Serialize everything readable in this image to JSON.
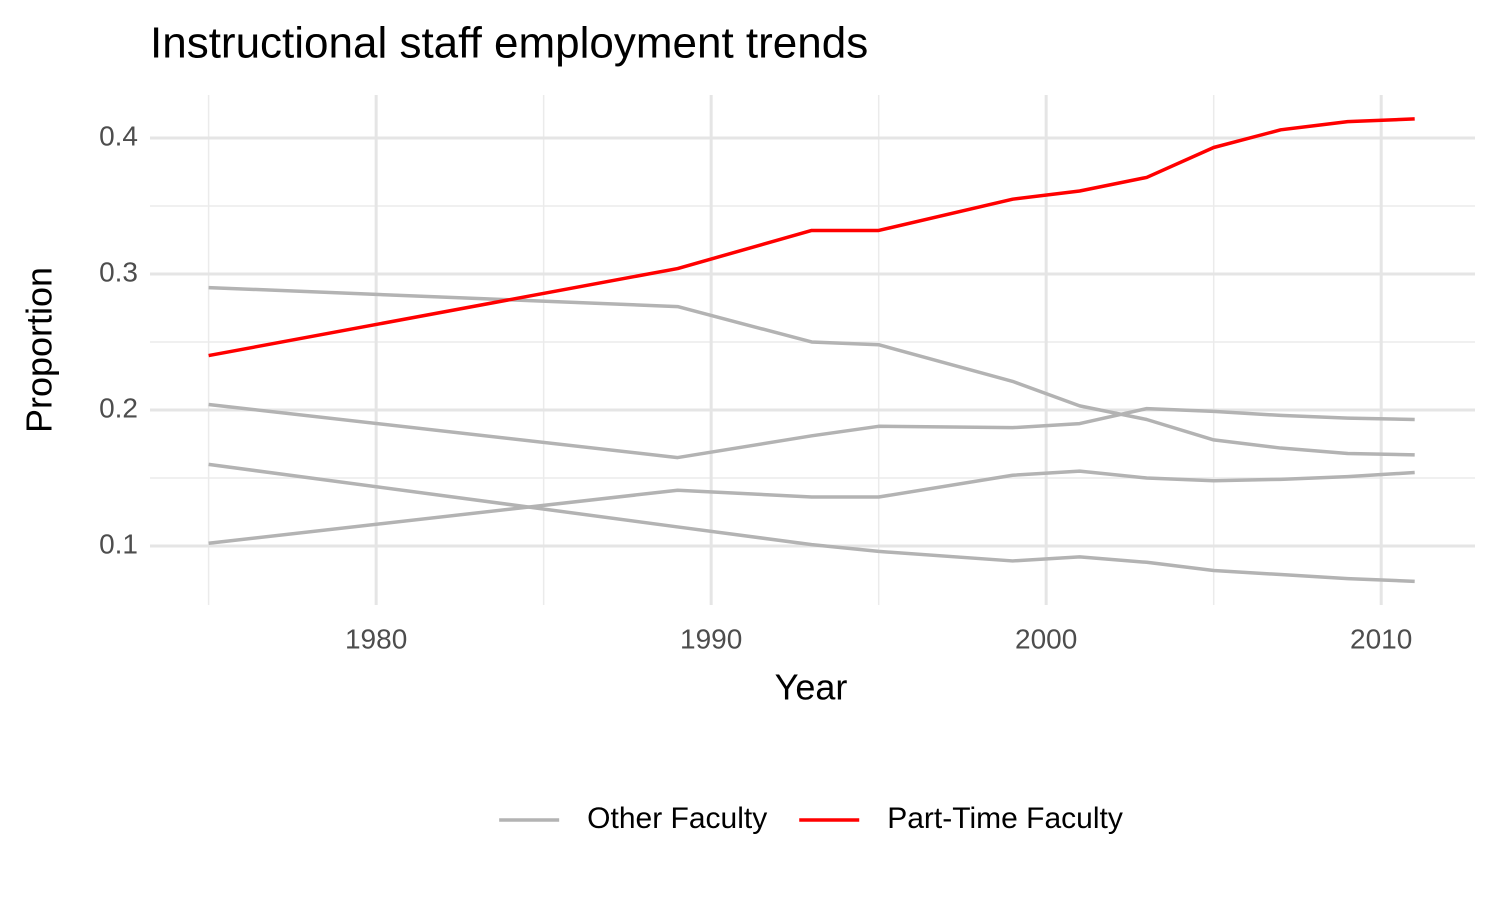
{
  "chart_data": {
    "type": "line",
    "title": "Instructional staff employment trends",
    "x_label": "Year",
    "y_label": "Proportion",
    "x": [
      1975,
      1989,
      1993,
      1995,
      1999,
      2001,
      2003,
      2005,
      2007,
      2009,
      2011
    ],
    "series": [
      {
        "name": "Other Faculty",
        "color": "#b3b3b3",
        "values": [
          0.29,
          0.276,
          0.25,
          0.248,
          0.221,
          0.203,
          0.193,
          0.178,
          0.172,
          0.168,
          0.167
        ]
      },
      {
        "name": "Other Faculty",
        "color": "#b3b3b3",
        "values": [
          0.204,
          0.165,
          0.181,
          0.188,
          0.187,
          0.19,
          0.201,
          0.199,
          0.196,
          0.194,
          0.193
        ]
      },
      {
        "name": "Other Faculty",
        "color": "#b3b3b3",
        "values": [
          0.16,
          0.114,
          0.101,
          0.096,
          0.089,
          0.092,
          0.088,
          0.082,
          0.079,
          0.076,
          0.074
        ]
      },
      {
        "name": "Other Faculty",
        "color": "#b3b3b3",
        "values": [
          0.102,
          0.141,
          0.136,
          0.136,
          0.152,
          0.155,
          0.15,
          0.148,
          0.149,
          0.151,
          0.154
        ]
      },
      {
        "name": "Part-Time Faculty",
        "color": "#ff0000",
        "values": [
          0.24,
          0.304,
          0.332,
          0.332,
          0.355,
          0.361,
          0.371,
          0.393,
          0.406,
          0.412,
          0.414
        ]
      }
    ],
    "xlim": [
      1973.25,
      2012.8
    ],
    "ylim": [
      0.0566,
      0.4316
    ],
    "xticks": [
      1980,
      1990,
      2000,
      2010
    ],
    "yticks": [
      0.1,
      0.2,
      0.3,
      0.4
    ],
    "xminor": [
      1975,
      1985,
      1995,
      2005
    ],
    "yminor": [
      0.15,
      0.25,
      0.35
    ],
    "grid": true,
    "legend": "bottom"
  }
}
